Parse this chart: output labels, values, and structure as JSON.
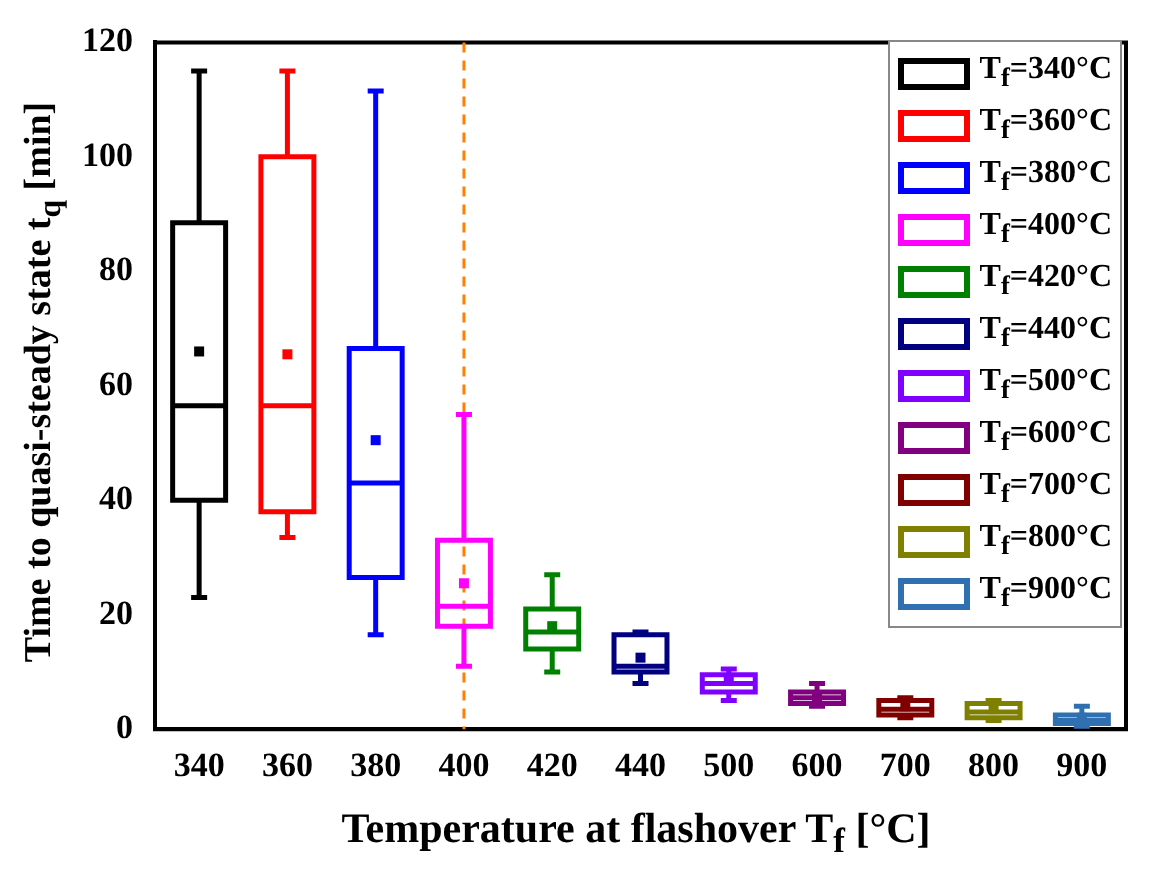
{
  "chart_data": {
    "type": "box",
    "xlabel": "Temperature at flashover T$_{f}$ [°C]",
    "ylabel": "Time to quasi-steady state t$_{q}$ [min]",
    "categories": [
      "340",
      "360",
      "380",
      "400",
      "420",
      "440",
      "500",
      "600",
      "700",
      "800",
      "900"
    ],
    "ylim": [
      0,
      120
    ],
    "yticks": [
      0,
      20,
      40,
      60,
      80,
      100,
      120
    ],
    "grid": false,
    "legend": "top right",
    "ref_lines": [
      {
        "axis": "x",
        "value": "400",
        "color": "#ff8000",
        "line_style": "dashed"
      }
    ],
    "series": [
      {
        "name": "T$_{f}$=340°C",
        "color": "#000000",
        "x": [
          "340"
        ],
        "boxes": [
          {
            "low": 23,
            "q1": 40,
            "median": 56.5,
            "q3": 88.5,
            "high": 115,
            "mean": 66
          }
        ]
      },
      {
        "name": "T$_{f}$=360°C",
        "color": "#ff0000",
        "x": [
          "360"
        ],
        "boxes": [
          {
            "low": 33.5,
            "q1": 38,
            "median": 56.5,
            "q3": 100,
            "high": 115,
            "mean": 65.5
          }
        ]
      },
      {
        "name": "T$_{f}$=380°C",
        "color": "#0000ff",
        "x": [
          "380"
        ],
        "boxes": [
          {
            "low": 16.5,
            "q1": 26.5,
            "median": 43,
            "q3": 66.5,
            "high": 111.5,
            "mean": 50.5
          }
        ]
      },
      {
        "name": "T$_{f}$=400°C",
        "color": "#ff00ff",
        "x": [
          "400"
        ],
        "boxes": [
          {
            "low": 11,
            "q1": 18,
            "median": 21.5,
            "q3": 33,
            "high": 55,
            "mean": 25.5
          }
        ]
      },
      {
        "name": "T$_{f}$=420°C",
        "color": "#008000",
        "x": [
          "420"
        ],
        "boxes": [
          {
            "low": 10,
            "q1": 14,
            "median": 17,
            "q3": 21,
            "high": 27,
            "mean": 18
          }
        ]
      },
      {
        "name": "T$_{f}$=440°C",
        "color": "#000080",
        "x": [
          "440"
        ],
        "boxes": [
          {
            "low": 8,
            "q1": 10,
            "median": 11,
            "q3": 16.5,
            "high": 17,
            "mean": 12.5
          }
        ]
      },
      {
        "name": "T$_{f}$=500°C",
        "color": "#8000ff",
        "x": [
          "500"
        ],
        "boxes": [
          {
            "low": 5,
            "q1": 6.5,
            "median": 8,
            "q3": 9.5,
            "high": 10.5,
            "mean": 8.5
          }
        ]
      },
      {
        "name": "T$_{f}$=600°C",
        "color": "#800080",
        "x": [
          "600"
        ],
        "boxes": [
          {
            "low": 4,
            "q1": 4.5,
            "median": 5.5,
            "q3": 6.5,
            "high": 8,
            "mean": 5.5
          }
        ]
      },
      {
        "name": "T$_{f}$=700°C",
        "color": "#800000",
        "x": [
          "700"
        ],
        "boxes": [
          {
            "low": 2,
            "q1": 2.5,
            "median": 3.5,
            "q3": 5,
            "high": 5.5,
            "mean": 4
          }
        ]
      },
      {
        "name": "T$_{f}$=800°C",
        "color": "#808000",
        "x": [
          "800"
        ],
        "boxes": [
          {
            "low": 1.5,
            "q1": 2,
            "median": 3,
            "q3": 4.5,
            "high": 5,
            "mean": 3.5
          }
        ]
      },
      {
        "name": "T$_{f}$=900°C",
        "color": "#3070b0",
        "x": [
          "900"
        ],
        "boxes": [
          {
            "low": 0.5,
            "q1": 1,
            "median": 1.5,
            "q3": 2.5,
            "high": 4,
            "mean": 2
          }
        ]
      }
    ]
  }
}
